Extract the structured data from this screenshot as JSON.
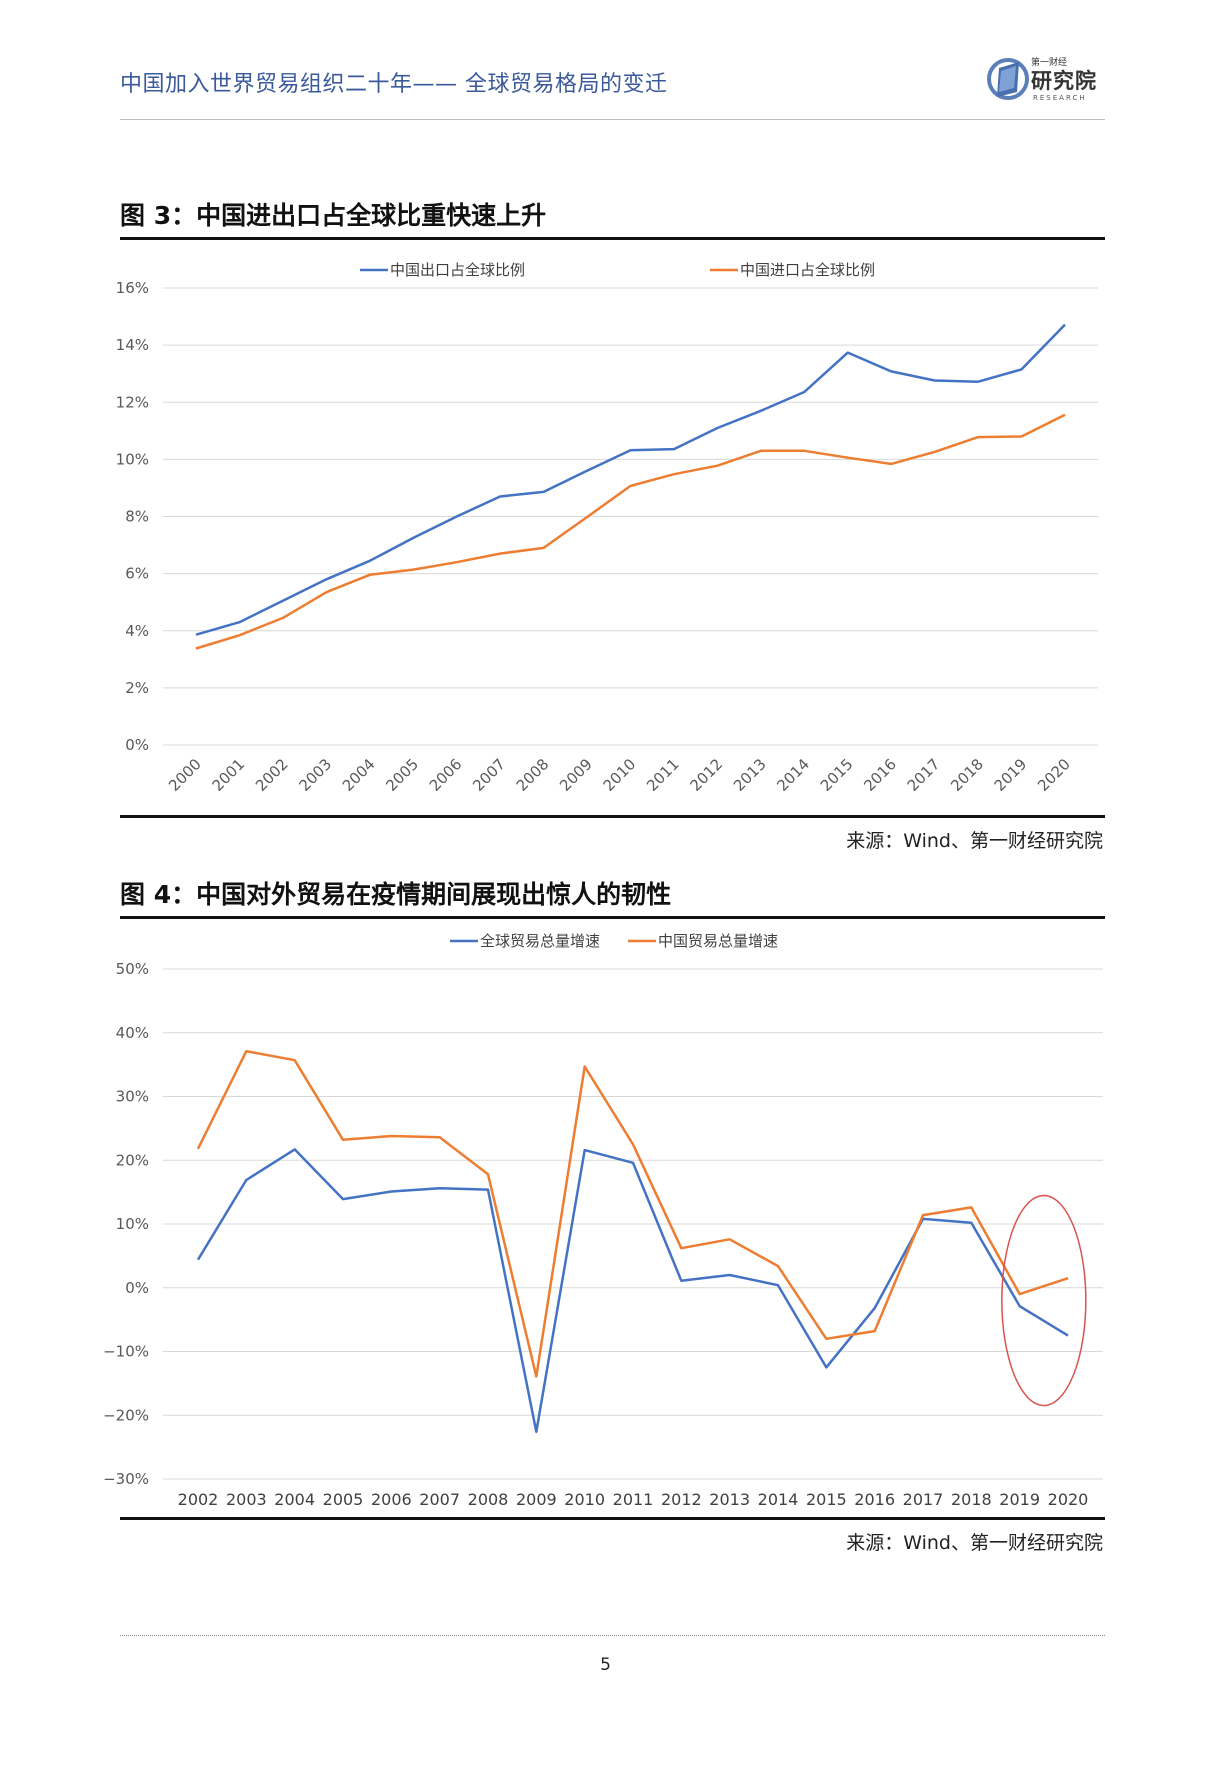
{
  "header": {
    "title": "中国加入世界贸易组织二十年—— 全球贸易格局的变迁",
    "logo_small": "第一财经",
    "logo_main": "研究院",
    "logo_sub": "RESEARCH"
  },
  "figures": [
    {
      "title": "图 3：中国进出口占全球比重快速上升",
      "source": "来源：Wind、第一财经研究院"
    },
    {
      "title": "图 4：中国对外贸易在疫情期间展现出惊人的韧性",
      "source": "来源：Wind、第一财经研究院"
    }
  ],
  "page_number": "5",
  "colors": {
    "blue": "#4472c4",
    "orange": "#ed7d31",
    "circle": "#d9534f",
    "grid": "#d9d9d9"
  },
  "chart_data": [
    {
      "type": "line",
      "title": "图 3：中国进出口占全球比重快速上升",
      "categories": [
        "2000",
        "2001",
        "2002",
        "2003",
        "2004",
        "2005",
        "2006",
        "2007",
        "2008",
        "2009",
        "2010",
        "2011",
        "2012",
        "2013",
        "2014",
        "2015",
        "2016",
        "2017",
        "2018",
        "2019",
        "2020"
      ],
      "series": [
        {
          "name": "中国出口占全球比例",
          "color": "#4472c4",
          "values": [
            3.86,
            4.3,
            5.05,
            5.8,
            6.45,
            7.25,
            8.0,
            8.7,
            8.86,
            9.6,
            10.32,
            10.36,
            11.1,
            11.7,
            12.36,
            13.74,
            13.08,
            12.76,
            12.72,
            13.15,
            14.72
          ]
        },
        {
          "name": "中国进口占全球比例",
          "color": "#ed7d31",
          "values": [
            3.38,
            3.84,
            4.45,
            5.35,
            5.96,
            6.14,
            6.4,
            6.7,
            6.9,
            7.98,
            9.07,
            9.48,
            9.78,
            10.3,
            10.3,
            10.06,
            9.84,
            10.26,
            10.78,
            10.8,
            11.56
          ]
        }
      ],
      "yticks": [
        "0%",
        "2%",
        "4%",
        "6%",
        "8%",
        "10%",
        "12%",
        "14%",
        "16%"
      ],
      "ylim": [
        0,
        16
      ],
      "xlabel": "",
      "ylabel": "",
      "legend": "top-center",
      "grid": true
    },
    {
      "type": "line",
      "title": "图 4：中国对外贸易在疫情期间展现出惊人的韧性",
      "categories": [
        "2002",
        "2003",
        "2004",
        "2005",
        "2006",
        "2007",
        "2008",
        "2009",
        "2010",
        "2011",
        "2012",
        "2013",
        "2014",
        "2015",
        "2016",
        "2017",
        "2018",
        "2019",
        "2020"
      ],
      "series": [
        {
          "name": "全球贸易总量增速",
          "color": "#4472c4",
          "values": [
            4.4,
            16.9,
            21.7,
            13.9,
            15.1,
            15.6,
            15.4,
            -22.6,
            21.6,
            19.6,
            1.1,
            2.0,
            0.4,
            -12.5,
            -3.2,
            10.8,
            10.2,
            -2.9,
            -7.5
          ]
        },
        {
          "name": "中国贸易总量增速",
          "color": "#ed7d31",
          "values": [
            21.8,
            37.1,
            35.7,
            23.2,
            23.8,
            23.6,
            17.8,
            -13.9,
            34.7,
            22.5,
            6.2,
            7.6,
            3.4,
            -8.0,
            -6.8,
            11.4,
            12.6,
            -1.0,
            1.5
          ]
        }
      ],
      "yticks": [
        "−30%",
        "−20%",
        "−10%",
        "0%",
        "10%",
        "20%",
        "30%",
        "40%",
        "50%"
      ],
      "ylim": [
        -30,
        50
      ],
      "xlabel": "",
      "ylabel": "",
      "legend": "top-center",
      "grid": true,
      "annotation": "red ellipse around 2019–2020"
    }
  ]
}
